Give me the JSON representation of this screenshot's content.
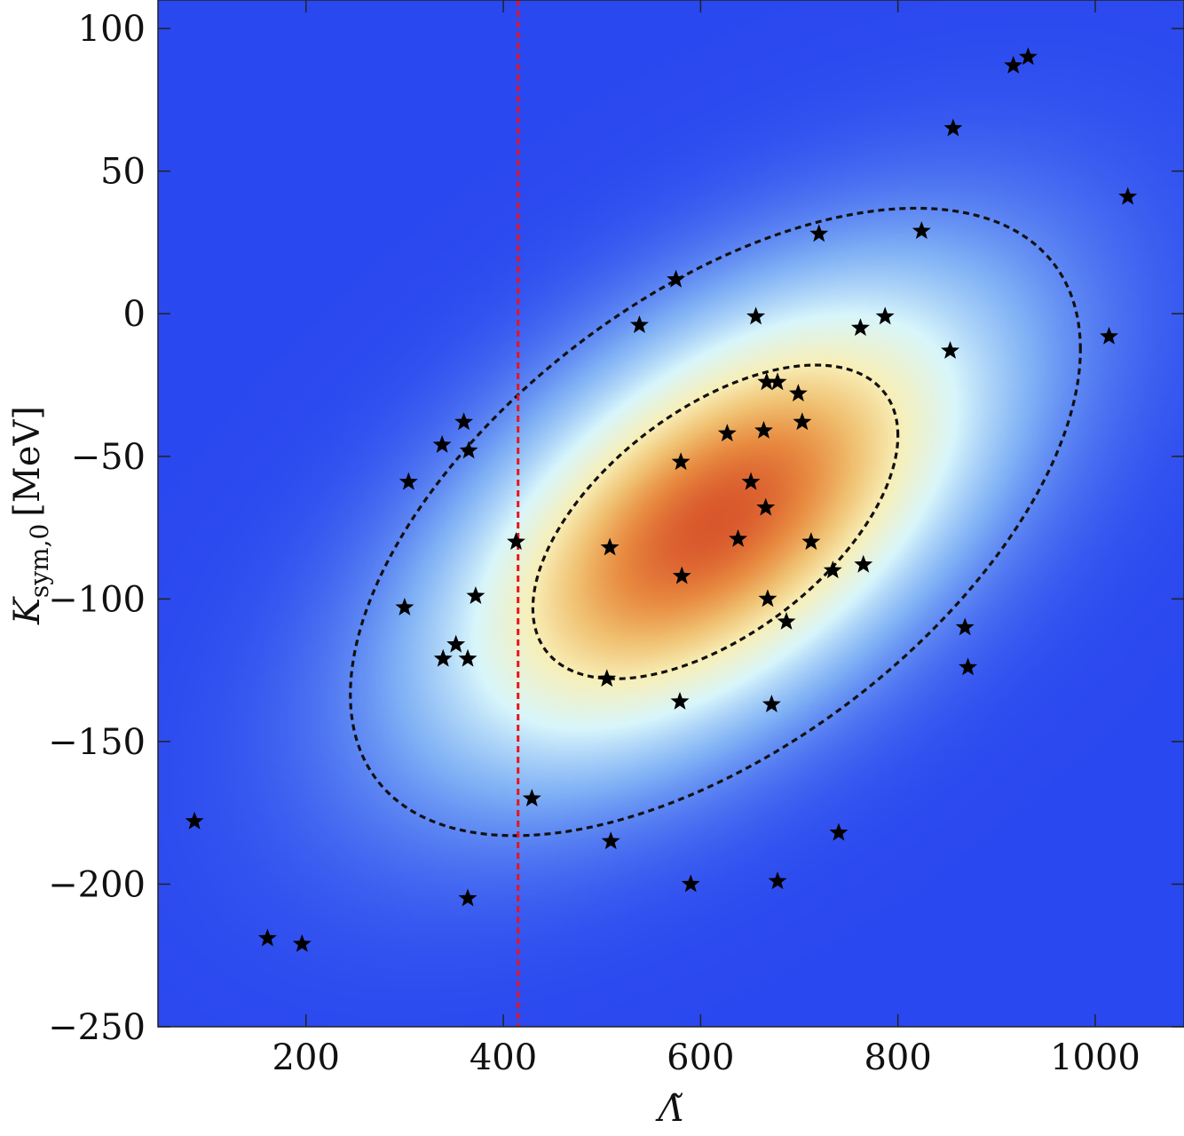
{
  "chart_data": {
    "type": "scatter",
    "title": "",
    "xlabel": "Λ̃",
    "ylabel_main": "K",
    "ylabel_sub": "sym,0",
    "ylabel_unit": "[MeV]",
    "xlim": [
      50,
      1090
    ],
    "ylim": [
      -250,
      110
    ],
    "x_ticks": [
      200,
      400,
      600,
      800,
      1000
    ],
    "y_ticks": [
      100,
      50,
      0,
      -50,
      -100,
      -150,
      -200,
      -250
    ],
    "y_tick_labels": [
      "100",
      "50",
      "0",
      "−50",
      "−100",
      "−150",
      "−200",
      "−250"
    ],
    "x_tick_labels": [
      "200",
      "400",
      "600",
      "800",
      "1000"
    ],
    "density": {
      "center": [
        615,
        -73
      ],
      "sigma_x": 185,
      "sigma_y": 55,
      "correlation": 0.55,
      "colormap": [
        "#2a48ef",
        "#7fb0f5",
        "#d8f6fb",
        "#f8efb8",
        "#f0c070",
        "#e88a40",
        "#d9572c"
      ]
    },
    "contours": [
      {
        "label": "inner",
        "level_sigma": 1,
        "color": "#111111",
        "style": "dashed"
      },
      {
        "label": "outer",
        "level_sigma": 2,
        "color": "#111111",
        "style": "dashed"
      }
    ],
    "reference_line": {
      "x": 415,
      "color": "#e8141e",
      "style": "dashed"
    },
    "points": [
      [
        917,
        87
      ],
      [
        932,
        90
      ],
      [
        856,
        65
      ],
      [
        1033,
        41
      ],
      [
        720,
        28
      ],
      [
        824,
        29
      ],
      [
        575,
        12
      ],
      [
        656,
        -1
      ],
      [
        787,
        -1
      ],
      [
        762,
        -5
      ],
      [
        538,
        -4
      ],
      [
        853,
        -13
      ],
      [
        1014,
        -8
      ],
      [
        667,
        -24
      ],
      [
        678,
        -24
      ],
      [
        699,
        -28
      ],
      [
        703,
        -38
      ],
      [
        360,
        -38
      ],
      [
        338,
        -46
      ],
      [
        365,
        -48
      ],
      [
        627,
        -42
      ],
      [
        664,
        -41
      ],
      [
        580,
        -52
      ],
      [
        304,
        -59
      ],
      [
        651,
        -59
      ],
      [
        666,
        -68
      ],
      [
        413,
        -80
      ],
      [
        638,
        -79
      ],
      [
        712,
        -80
      ],
      [
        508,
        -82
      ],
      [
        581,
        -92
      ],
      [
        734,
        -90
      ],
      [
        765,
        -88
      ],
      [
        372,
        -99
      ],
      [
        668,
        -100
      ],
      [
        300,
        -103
      ],
      [
        687,
        -108
      ],
      [
        868,
        -110
      ],
      [
        352,
        -116
      ],
      [
        339,
        -121
      ],
      [
        364,
        -121
      ],
      [
        871,
        -124
      ],
      [
        505,
        -128
      ],
      [
        579,
        -136
      ],
      [
        672,
        -137
      ],
      [
        429,
        -170
      ],
      [
        87,
        -178
      ],
      [
        740,
        -182
      ],
      [
        509,
        -185
      ],
      [
        590,
        -200
      ],
      [
        678,
        -199
      ],
      [
        364,
        -205
      ],
      [
        161,
        -219
      ],
      [
        196,
        -221
      ]
    ]
  }
}
